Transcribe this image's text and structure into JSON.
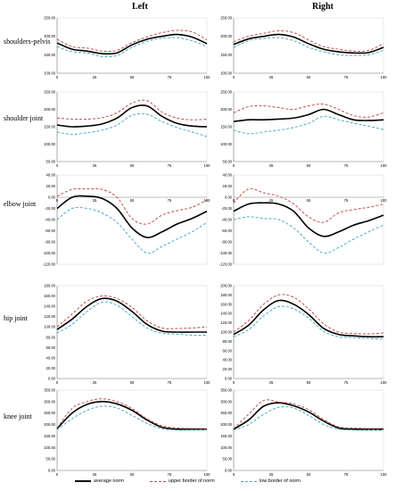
{
  "headers": {
    "left": "Left",
    "right": "Right"
  },
  "row_labels": [
    "shoulders-pelvis",
    "shoulder joint",
    "elbow joint",
    "hip joint",
    "knee joint"
  ],
  "colors": {
    "average": "#000000",
    "upper": "#c0504d",
    "low": "#4bacc6"
  },
  "legend": {
    "average": "average norm",
    "upper": "upper border of norm",
    "low": "low border of norm"
  },
  "chart_data": [
    {
      "id": "shoulders-pelvis-left",
      "type": "line",
      "row": 0,
      "side": "left",
      "x": [
        0,
        10,
        20,
        30,
        40,
        50,
        60,
        70,
        80,
        90,
        100
      ],
      "x_ticks": [
        "0",
        "25",
        "50",
        "75",
        "100"
      ],
      "x_tick_values": [
        0,
        25,
        50,
        75,
        100
      ],
      "ylim": [
        100,
        250
      ],
      "y_ticks": [
        "100.00",
        "150.00",
        "200.00",
        "250.00"
      ],
      "y_tick_values": [
        100,
        150,
        200,
        250
      ],
      "series": [
        {
          "name": "average norm",
          "key": "average",
          "values": [
            182,
            165,
            160,
            153,
            155,
            177,
            192,
            200,
            205,
            198,
            180
          ]
        },
        {
          "name": "upper border of norm",
          "key": "upper",
          "values": [
            192,
            172,
            168,
            160,
            162,
            183,
            198,
            210,
            216,
            212,
            190
          ]
        },
        {
          "name": "low border of norm",
          "key": "low",
          "values": [
            172,
            158,
            155,
            145,
            148,
            170,
            186,
            195,
            196,
            188,
            172
          ]
        }
      ]
    },
    {
      "id": "shoulders-pelvis-right",
      "type": "line",
      "row": 0,
      "side": "right",
      "x": [
        0,
        10,
        20,
        30,
        40,
        50,
        60,
        70,
        80,
        90,
        100
      ],
      "x_ticks": [
        "0",
        "25",
        "50",
        "75",
        "100"
      ],
      "x_tick_values": [
        0,
        25,
        50,
        75,
        100
      ],
      "ylim": [
        100,
        250
      ],
      "y_ticks": [
        "100.00",
        "150.00",
        "200.00",
        "250.00"
      ],
      "y_tick_values": [
        100,
        150,
        200,
        250
      ],
      "series": [
        {
          "name": "average norm",
          "key": "average",
          "values": [
            178,
            193,
            200,
            205,
            198,
            180,
            165,
            158,
            155,
            156,
            170
          ]
        },
        {
          "name": "upper border of norm",
          "key": "upper",
          "values": [
            185,
            200,
            208,
            215,
            210,
            190,
            172,
            165,
            160,
            162,
            180
          ]
        },
        {
          "name": "low border of norm",
          "key": "low",
          "values": [
            170,
            188,
            194,
            196,
            188,
            170,
            158,
            150,
            148,
            150,
            162
          ]
        }
      ]
    },
    {
      "id": "shoulder-joint-left",
      "type": "line",
      "row": 1,
      "side": "left",
      "x": [
        0,
        10,
        20,
        30,
        40,
        50,
        60,
        70,
        80,
        90,
        100
      ],
      "x_ticks": [
        "0",
        "25",
        "50",
        "75",
        "100"
      ],
      "x_tick_values": [
        0,
        25,
        50,
        75,
        100
      ],
      "ylim": [
        50,
        250
      ],
      "y_ticks": [
        "50.00",
        "100.00",
        "150.00",
        "200.00",
        "250.00"
      ],
      "y_tick_values": [
        50,
        100,
        150,
        200,
        250
      ],
      "series": [
        {
          "name": "average norm",
          "key": "average",
          "values": [
            155,
            150,
            152,
            158,
            175,
            205,
            210,
            180,
            160,
            152,
            150
          ]
        },
        {
          "name": "upper border of norm",
          "key": "upper",
          "values": [
            175,
            172,
            172,
            176,
            190,
            218,
            225,
            192,
            175,
            170,
            172
          ]
        },
        {
          "name": "low border of norm",
          "key": "low",
          "values": [
            135,
            128,
            133,
            140,
            155,
            183,
            186,
            165,
            148,
            135,
            122
          ]
        }
      ]
    },
    {
      "id": "shoulder-joint-right",
      "type": "line",
      "row": 1,
      "side": "right",
      "x": [
        0,
        10,
        20,
        30,
        40,
        50,
        60,
        70,
        80,
        90,
        100
      ],
      "x_ticks": [
        "0",
        "25",
        "50",
        "75",
        "100"
      ],
      "x_tick_values": [
        0,
        25,
        50,
        75,
        100
      ],
      "ylim": [
        50,
        250
      ],
      "y_ticks": [
        "50.00",
        "100.00",
        "150.00",
        "200.00",
        "250.00"
      ],
      "y_tick_values": [
        50,
        100,
        150,
        200,
        250
      ],
      "series": [
        {
          "name": "average norm",
          "key": "average",
          "values": [
            165,
            170,
            170,
            172,
            175,
            185,
            200,
            185,
            170,
            168,
            170
          ]
        },
        {
          "name": "upper border of norm",
          "key": "upper",
          "values": [
            190,
            208,
            210,
            205,
            200,
            210,
            215,
            200,
            182,
            178,
            190
          ]
        },
        {
          "name": "low border of norm",
          "key": "low",
          "values": [
            140,
            130,
            135,
            140,
            148,
            160,
            180,
            170,
            160,
            152,
            142
          ]
        }
      ]
    },
    {
      "id": "elbow-joint-left",
      "type": "line",
      "row": 2,
      "side": "left",
      "x": [
        0,
        10,
        20,
        30,
        40,
        50,
        60,
        70,
        80,
        90,
        100
      ],
      "x_ticks": [
        "0",
        "25",
        "50",
        "75",
        "100"
      ],
      "x_tick_values": [
        0,
        25,
        50,
        75,
        100
      ],
      "ylim": [
        -120,
        40
      ],
      "y_ticks": [
        "-120.00",
        "-100.00",
        "-80.00",
        "-60.00",
        "-40.00",
        "-20.00",
        "0.00",
        "20.00",
        "40.00"
      ],
      "y_tick_values": [
        -120,
        -100,
        -80,
        -60,
        -40,
        -20,
        0,
        20,
        40
      ],
      "series": [
        {
          "name": "average norm",
          "key": "average",
          "values": [
            -20,
            0,
            2,
            -2,
            -20,
            -55,
            -72,
            -62,
            -48,
            -38,
            -25
          ]
        },
        {
          "name": "upper border of norm",
          "key": "upper",
          "values": [
            2,
            14,
            15,
            14,
            0,
            -38,
            -48,
            -32,
            -24,
            -18,
            -5
          ]
        },
        {
          "name": "low border of norm",
          "key": "low",
          "values": [
            -40,
            -20,
            -20,
            -28,
            -45,
            -75,
            -100,
            -88,
            -75,
            -62,
            -45
          ]
        }
      ]
    },
    {
      "id": "elbow-joint-right",
      "type": "line",
      "row": 2,
      "side": "right",
      "x": [
        0,
        10,
        20,
        30,
        40,
        50,
        60,
        70,
        80,
        90,
        100
      ],
      "x_ticks": [
        "0",
        "25",
        "50",
        "75",
        "100"
      ],
      "x_tick_values": [
        0,
        25,
        50,
        75,
        100
      ],
      "ylim": [
        -120,
        40
      ],
      "y_ticks": [
        "-120.00",
        "-100.00",
        "-80.00",
        "-60.00",
        "-40.00",
        "-20.00",
        "0.00",
        "20.00",
        "40.00"
      ],
      "y_tick_values": [
        -120,
        -100,
        -80,
        -60,
        -40,
        -20,
        0,
        20,
        40
      ],
      "series": [
        {
          "name": "average norm",
          "key": "average",
          "values": [
            -25,
            -12,
            -10,
            -12,
            -25,
            -55,
            -70,
            -62,
            -50,
            -42,
            -32
          ]
        },
        {
          "name": "upper border of norm",
          "key": "upper",
          "values": [
            -10,
            15,
            8,
            2,
            -12,
            -35,
            -45,
            -28,
            -22,
            -18,
            -12
          ]
        },
        {
          "name": "low border of norm",
          "key": "low",
          "values": [
            -40,
            -35,
            -38,
            -40,
            -55,
            -80,
            -100,
            -90,
            -75,
            -62,
            -50
          ]
        }
      ]
    },
    {
      "id": "hip-joint-left",
      "type": "line",
      "row": 3,
      "side": "left",
      "x": [
        0,
        10,
        20,
        30,
        40,
        50,
        60,
        70,
        80,
        90,
        100
      ],
      "x_ticks": [
        "0",
        "25",
        "50",
        "75",
        "100"
      ],
      "x_tick_values": [
        0,
        25,
        50,
        75,
        100
      ],
      "ylim": [
        0,
        180
      ],
      "y_ticks": [
        "0.00",
        "20.00",
        "40.00",
        "60.00",
        "80.00",
        "100.00",
        "120.00",
        "140.00",
        "160.00",
        "180.00"
      ],
      "y_tick_values": [
        0,
        20,
        40,
        60,
        80,
        100,
        120,
        140,
        160,
        180
      ],
      "series": [
        {
          "name": "average norm",
          "key": "average",
          "values": [
            95,
            115,
            140,
            155,
            150,
            130,
            105,
            92,
            90,
            90,
            90
          ]
        },
        {
          "name": "upper border of norm",
          "key": "upper",
          "values": [
            100,
            125,
            150,
            160,
            155,
            138,
            112,
            98,
            97,
            98,
            100
          ]
        },
        {
          "name": "low border of norm",
          "key": "low",
          "values": [
            88,
            105,
            130,
            148,
            142,
            120,
            98,
            88,
            86,
            84,
            84
          ]
        }
      ]
    },
    {
      "id": "hip-joint-right",
      "type": "line",
      "row": 3,
      "side": "right",
      "x": [
        0,
        10,
        20,
        30,
        40,
        50,
        60,
        70,
        80,
        90,
        100
      ],
      "x_ticks": [
        "0",
        "25",
        "50",
        "75",
        "100"
      ],
      "x_tick_values": [
        0,
        25,
        50,
        75,
        100
      ],
      "ylim": [
        0,
        200
      ],
      "y_ticks": [
        "0.00",
        "20.00",
        "40.00",
        "60.00",
        "80.00",
        "100.00",
        "120.00",
        "140.00",
        "160.00",
        "180.00",
        "200.00"
      ],
      "y_tick_values": [
        0,
        20,
        40,
        60,
        80,
        100,
        120,
        140,
        160,
        180,
        200
      ],
      "series": [
        {
          "name": "average norm",
          "key": "average",
          "values": [
            95,
            115,
            148,
            168,
            160,
            138,
            108,
            95,
            92,
            90,
            90
          ]
        },
        {
          "name": "upper border of norm",
          "key": "upper",
          "values": [
            100,
            125,
            160,
            180,
            175,
            150,
            118,
            100,
            97,
            96,
            98
          ]
        },
        {
          "name": "low border of norm",
          "key": "low",
          "values": [
            90,
            105,
            135,
            155,
            150,
            130,
            102,
            90,
            88,
            86,
            85
          ]
        }
      ]
    },
    {
      "id": "knee-joint-left",
      "type": "line",
      "row": 4,
      "side": "left",
      "x": [
        0,
        10,
        20,
        30,
        40,
        50,
        60,
        70,
        80,
        90,
        100
      ],
      "x_ticks": [
        "0",
        "25",
        "50",
        "75",
        "100"
      ],
      "x_tick_values": [
        0,
        25,
        50,
        75,
        100
      ],
      "ylim": [
        0,
        350
      ],
      "y_ticks": [
        "0.00",
        "50.00",
        "100.00",
        "150.00",
        "200.00",
        "250.00",
        "300.00",
        "350.00"
      ],
      "y_tick_values": [
        0,
        50,
        100,
        150,
        200,
        250,
        300,
        350
      ],
      "series": [
        {
          "name": "average norm",
          "key": "average",
          "values": [
            182,
            250,
            288,
            300,
            290,
            262,
            220,
            188,
            180,
            180,
            180
          ]
        },
        {
          "name": "upper border of norm",
          "key": "upper",
          "values": [
            185,
            270,
            300,
            312,
            300,
            270,
            225,
            195,
            185,
            183,
            182
          ]
        },
        {
          "name": "low border of norm",
          "key": "low",
          "values": [
            178,
            225,
            262,
            280,
            272,
            240,
            205,
            182,
            176,
            176,
            176
          ]
        }
      ]
    },
    {
      "id": "knee-joint-right",
      "type": "line",
      "row": 4,
      "side": "right",
      "x": [
        0,
        10,
        20,
        30,
        40,
        50,
        60,
        70,
        80,
        90,
        100
      ],
      "x_ticks": [
        "0",
        "25",
        "50",
        "75",
        "100"
      ],
      "x_tick_values": [
        0,
        25,
        50,
        75,
        100
      ],
      "ylim": [
        0,
        350
      ],
      "y_ticks": [
        "0.00",
        "50.00",
        "100.00",
        "150.00",
        "200.00",
        "250.00",
        "300.00",
        "350.00"
      ],
      "y_tick_values": [
        0,
        50,
        100,
        150,
        200,
        250,
        300,
        350
      ],
      "series": [
        {
          "name": "average norm",
          "key": "average",
          "values": [
            180,
            220,
            280,
            295,
            282,
            255,
            215,
            185,
            180,
            180,
            180
          ]
        },
        {
          "name": "upper border of norm",
          "key": "upper",
          "values": [
            182,
            245,
            305,
            298,
            290,
            265,
            222,
            190,
            185,
            183,
            183
          ]
        },
        {
          "name": "low border of norm",
          "key": "low",
          "values": [
            176,
            200,
            245,
            275,
            272,
            240,
            200,
            180,
            176,
            175,
            175
          ]
        }
      ]
    }
  ]
}
